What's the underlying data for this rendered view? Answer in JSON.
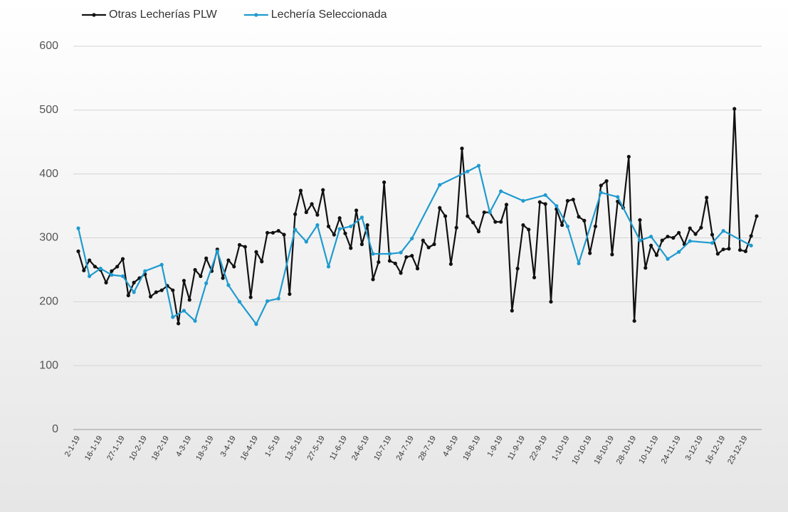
{
  "chart_data": {
    "type": "line",
    "categories": [
      "2-1-19",
      null,
      null,
      null,
      "16-1-19",
      null,
      null,
      null,
      "27-1-19",
      null,
      null,
      null,
      "10-2-19",
      null,
      null,
      null,
      "18-2-19",
      null,
      null,
      null,
      "4-3-19",
      null,
      null,
      null,
      "18-3-19",
      null,
      null,
      null,
      "3-4-19",
      null,
      null,
      null,
      "16-4-19",
      null,
      null,
      null,
      "1-5-19",
      null,
      null,
      null,
      "13-5-19",
      null,
      null,
      null,
      "27-5-19",
      null,
      null,
      null,
      "11-6-19",
      null,
      null,
      null,
      "24-6-19",
      null,
      null,
      null,
      "10-7-19",
      null,
      null,
      null,
      "24-7-19",
      null,
      null,
      null,
      "28-7-19",
      null,
      null,
      null,
      "4-8-19",
      null,
      null,
      null,
      "18-8-19",
      null,
      null,
      null,
      "1-9-19",
      null,
      null,
      null,
      "11-9-19",
      null,
      null,
      null,
      "22-9-19",
      null,
      null,
      null,
      "1-10-19",
      null,
      null,
      null,
      "10-10-19",
      null,
      null,
      null,
      "18-10-19",
      null,
      null,
      null,
      "28-10-19",
      null,
      null,
      null,
      "10-11-19",
      null,
      null,
      null,
      "24-11-19",
      null,
      null,
      null,
      "3-12-19",
      null,
      null,
      null,
      "16-12-19",
      null,
      null,
      null,
      "23-12-19",
      null,
      null
    ],
    "series": [
      {
        "name": "Otras Lecherías PLW",
        "color": "#111111",
        "values": [
          279,
          249,
          265,
          255,
          250,
          230,
          248,
          255,
          267,
          210,
          230,
          237,
          243,
          208,
          215,
          218,
          225,
          218,
          166,
          233,
          203,
          250,
          240,
          268,
          248,
          282,
          237,
          265,
          255,
          289,
          286,
          207,
          278,
          263,
          308,
          308,
          311,
          305,
          212,
          337,
          374,
          340,
          353,
          336,
          375,
          318,
          305,
          331,
          307,
          284,
          343,
          290,
          320,
          235,
          262,
          387,
          264,
          260,
          245,
          270,
          272,
          252,
          296,
          285,
          290,
          347,
          334,
          259,
          316,
          440,
          334,
          324,
          310,
          340,
          340,
          325,
          325,
          352,
          186,
          252,
          320,
          313,
          238,
          356,
          353,
          200,
          345,
          320,
          358,
          360,
          333,
          327,
          276,
          318,
          382,
          389,
          274,
          357,
          347,
          427,
          170,
          328,
          253,
          288,
          273,
          296,
          302,
          300,
          308,
          290,
          315,
          306,
          316,
          363,
          305,
          275,
          282,
          283,
          502,
          281,
          279,
          303,
          334
        ]
      },
      {
        "name": "Lechería Seleccionada",
        "color": "#1f9bcf",
        "values": [
          315,
          null,
          240,
          null,
          252,
          null,
          242,
          null,
          240,
          null,
          215,
          null,
          248,
          null,
          null,
          258,
          null,
          176,
          null,
          186,
          null,
          170,
          null,
          229,
          null,
          279,
          null,
          226,
          null,
          200,
          null,
          null,
          165,
          null,
          201,
          null,
          205,
          null,
          null,
          313,
          null,
          294,
          null,
          320,
          null,
          255,
          null,
          314,
          null,
          318,
          null,
          332,
          null,
          275,
          null,
          null,
          275,
          null,
          277,
          null,
          299,
          null,
          null,
          null,
          null,
          383,
          null,
          null,
          null,
          null,
          404,
          null,
          413,
          null,
          340,
          null,
          373,
          null,
          null,
          null,
          358,
          null,
          null,
          null,
          367,
          null,
          350,
          null,
          318,
          null,
          260,
          null,
          null,
          null,
          371,
          null,
          null,
          364,
          null,
          null,
          null,
          296,
          null,
          302,
          null,
          null,
          267,
          null,
          278,
          null,
          295,
          null,
          null,
          null,
          292,
          null,
          311,
          null,
          null,
          null,
          null,
          288,
          null
        ]
      }
    ],
    "connect_gaps": true,
    "ylim": [
      0,
      600
    ],
    "yticks": [
      0,
      100,
      200,
      300,
      400,
      500,
      600
    ],
    "grid": true,
    "legend": "top"
  }
}
